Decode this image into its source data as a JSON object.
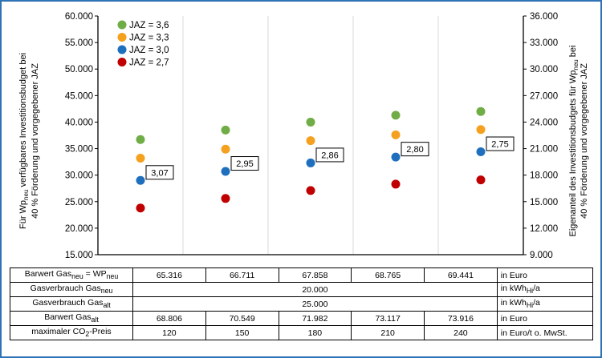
{
  "chart_data": {
    "type": "scatter",
    "left_axis": {
      "label_parts": [
        "Für Wp",
        "neu",
        " verfügbares Investitionsbudget bei",
        "40 % Förderung und vorgegebener JAZ"
      ],
      "ticks": [
        "15.000",
        "20.000",
        "25.000",
        "30.000",
        "35.000",
        "40.000",
        "45.000",
        "50.000",
        "55.000",
        "60.000"
      ],
      "ylim": [
        15000,
        60000
      ]
    },
    "right_axis": {
      "label_parts": [
        "Eigenanteil des Investitionsbudgets für Wp",
        "neu",
        " bei",
        "40 % Förderung und vorgegebener JAZ"
      ],
      "ticks": [
        "9.000",
        "12.000",
        "15.000",
        "18.000",
        "21.000",
        "24.000",
        "27.000",
        "30.000",
        "33.000",
        "36.000"
      ],
      "ylim": [
        9000,
        36000
      ]
    },
    "x_count": 5,
    "legend_position": "top-left",
    "grid": "vertical",
    "series": [
      {
        "name": "JAZ = 3,6",
        "color": "#70ad47",
        "values": [
          36700,
          38500,
          40000,
          41300,
          42000
        ]
      },
      {
        "name": "JAZ = 3,3",
        "color": "#f5a01e",
        "values": [
          33200,
          34900,
          36500,
          37600,
          38600
        ]
      },
      {
        "name": "JAZ = 3,0",
        "color": "#1f6fbf",
        "values": [
          29000,
          30700,
          32300,
          33400,
          34400
        ]
      },
      {
        "name": "JAZ = 2,7",
        "color": "#c00000",
        "values": [
          23800,
          25600,
          27100,
          28300,
          29100
        ]
      }
    ],
    "annotations": [
      "3,07",
      "2,95",
      "2,86",
      "2,80",
      "2,75"
    ]
  },
  "table": {
    "rows": [
      {
        "label_parts": [
          "Barwert Gas",
          "neu",
          " = WP",
          "neu",
          ""
        ],
        "values": [
          "65.316",
          "66.711",
          "67.858",
          "68.765",
          "69.441"
        ],
        "unit_parts": [
          "in Euro"
        ]
      },
      {
        "label_parts": [
          "Gasverbrauch Gas",
          "neu",
          ""
        ],
        "merged": "20.000",
        "unit_parts": [
          "in kWh",
          "Hi",
          "/a"
        ]
      },
      {
        "label_parts": [
          "Gasverbrauch Gas",
          "alt",
          ""
        ],
        "merged": "25.000",
        "unit_parts": [
          "in kWh",
          "Hi",
          "/a"
        ]
      },
      {
        "label_parts": [
          "Barwert Gas",
          "alt",
          ""
        ],
        "values": [
          "68.806",
          "70.549",
          "71.982",
          "73.117",
          "73.916"
        ],
        "unit_parts": [
          "in Euro"
        ]
      },
      {
        "label_parts": [
          "maximaler CO",
          "2",
          "-Preis"
        ],
        "values": [
          "120",
          "150",
          "180",
          "210",
          "240"
        ],
        "unit_parts": [
          "in Euro/t o. MwSt."
        ]
      }
    ]
  }
}
